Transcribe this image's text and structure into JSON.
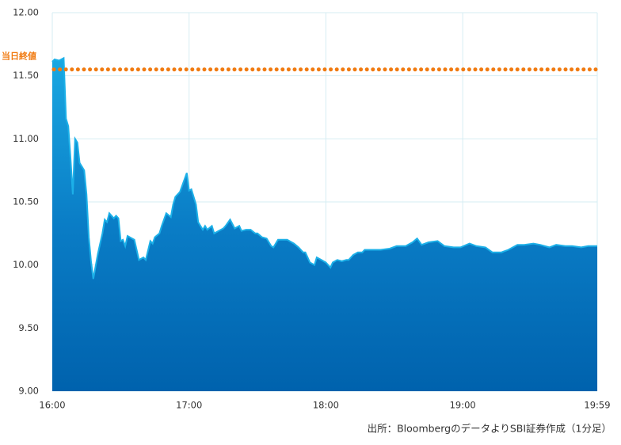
{
  "chart_data": {
    "type": "area",
    "x": [
      "16:00",
      "16:01",
      "16:03",
      "16:05",
      "16:06",
      "16:07",
      "16:08",
      "16:09",
      "16:10",
      "16:11",
      "16:12",
      "16:13",
      "16:14",
      "16:15",
      "16:16",
      "16:17",
      "16:18",
      "16:20",
      "16:22",
      "16:23",
      "16:24",
      "16:25",
      "16:27",
      "16:28",
      "16:29",
      "16:30",
      "16:31",
      "16:32",
      "16:33",
      "16:35",
      "16:36",
      "16:37",
      "16:38",
      "16:40",
      "16:41",
      "16:43",
      "16:44",
      "16:45",
      "16:47",
      "16:48",
      "16:50",
      "16:52",
      "16:53",
      "16:54",
      "16:56",
      "16:57",
      "16:59",
      "17:00",
      "17:01",
      "17:03",
      "17:04",
      "17:06",
      "17:07",
      "17:08",
      "17:10",
      "17:11",
      "17:13",
      "17:15",
      "17:16",
      "17:18",
      "17:20",
      "17:22",
      "17:23",
      "17:25",
      "17:27",
      "17:29",
      "17:30",
      "17:32",
      "17:34",
      "17:36",
      "17:37",
      "17:39",
      "17:41",
      "17:43",
      "17:44",
      "17:46",
      "17:48",
      "17:50",
      "17:51",
      "17:53",
      "17:55",
      "17:56",
      "17:58",
      "18:00",
      "18:02",
      "18:03",
      "18:05",
      "18:07",
      "18:09",
      "18:10",
      "18:12",
      "18:14",
      "18:16",
      "18:17",
      "18:21",
      "18:24",
      "18:28",
      "18:31",
      "18:35",
      "18:38",
      "18:40",
      "18:42",
      "18:45",
      "18:49",
      "18:52",
      "18:56",
      "18:59",
      "19:03",
      "19:06",
      "19:10",
      "19:13",
      "19:17",
      "19:20",
      "19:24",
      "19:27",
      "19:31",
      "19:34",
      "19:38",
      "19:41",
      "19:45",
      "19:48",
      "19:52",
      "19:55",
      "19:59"
    ],
    "values": [
      11.61,
      11.63,
      11.62,
      11.64,
      11.16,
      11.1,
      10.85,
      10.56,
      11.0,
      10.97,
      10.81,
      10.78,
      10.75,
      10.56,
      10.22,
      10.03,
      9.89,
      10.09,
      10.25,
      10.36,
      10.34,
      10.41,
      10.37,
      10.39,
      10.37,
      10.19,
      10.2,
      10.15,
      10.23,
      10.21,
      10.2,
      10.12,
      10.04,
      10.06,
      10.04,
      10.19,
      10.17,
      10.22,
      10.25,
      10.31,
      10.41,
      10.38,
      10.48,
      10.54,
      10.58,
      10.63,
      10.73,
      10.59,
      10.6,
      10.48,
      10.34,
      10.28,
      10.31,
      10.28,
      10.31,
      10.25,
      10.27,
      10.29,
      10.31,
      10.36,
      10.29,
      10.31,
      10.27,
      10.28,
      10.28,
      10.25,
      10.25,
      10.22,
      10.21,
      10.15,
      10.14,
      10.2,
      10.2,
      10.2,
      10.19,
      10.17,
      10.14,
      10.1,
      10.1,
      10.02,
      10.0,
      10.06,
      10.04,
      10.02,
      9.98,
      10.02,
      10.04,
      10.03,
      10.04,
      10.04,
      10.08,
      10.1,
      10.1,
      10.12,
      10.12,
      10.12,
      10.13,
      10.15,
      10.15,
      10.18,
      10.21,
      10.16,
      10.18,
      10.19,
      10.15,
      10.14,
      10.14,
      10.17,
      10.15,
      10.14,
      10.1,
      10.1,
      10.12,
      10.16,
      10.16,
      10.17,
      10.16,
      10.14,
      10.16,
      10.15,
      10.15,
      10.14,
      10.15,
      10.15
    ],
    "color": "#1cb0e8",
    "xlim": [
      "16:00",
      "19:59"
    ],
    "xticks": [
      "16:00",
      "17:00",
      "18:00",
      "19:00",
      "19:59"
    ],
    "ylim": [
      9,
      12
    ],
    "yticks": [
      {
        "value": 9,
        "label": "9.00"
      },
      {
        "value": 9.5,
        "label": "9.50"
      },
      {
        "value": 10,
        "label": "10.00"
      },
      {
        "value": 10.5,
        "label": "10.50"
      },
      {
        "value": 11,
        "label": "11.00"
      },
      {
        "value": 11.5,
        "label": "11.50"
      },
      {
        "value": 12,
        "label": "12.00"
      }
    ],
    "grid": true,
    "reference_line": {
      "label": "当日終値",
      "value": 11.55,
      "color": "#f07a10"
    },
    "source": "出所：BloombergのデータよりSBI証券作成（1分足）"
  }
}
